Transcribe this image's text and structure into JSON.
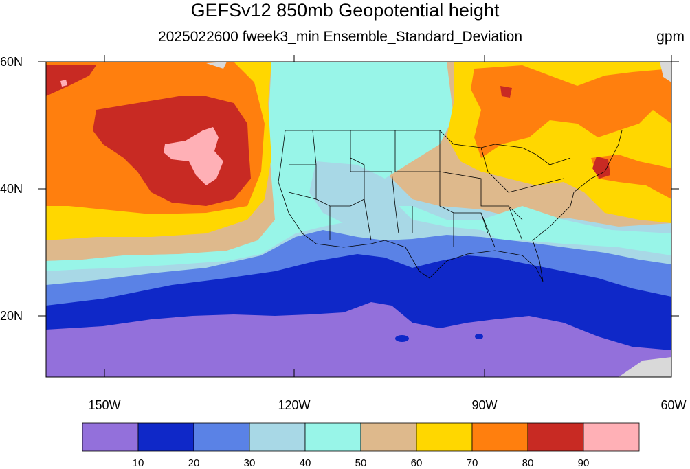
{
  "title": "GEFSv12 850mb Geopotential height",
  "subtitle": "2025022600 fweek3_min Ensemble_Standard_Deviation",
  "units": "gpm",
  "lat_labels": [
    "60N",
    "40N",
    "20N"
  ],
  "lon_labels": [
    "150W",
    "120W",
    "90W",
    "60W"
  ],
  "colorbar": {
    "colors": [
      "#9370db",
      "#0f28c8",
      "#5a82e6",
      "#a8d8e6",
      "#98f5e8",
      "#deb98c",
      "#ffd700",
      "#ff7f0e",
      "#c82a23",
      "#ffb0b6"
    ],
    "labels": [
      "10",
      "20",
      "30",
      "40",
      "50",
      "60",
      "70",
      "80",
      "90"
    ]
  }
}
